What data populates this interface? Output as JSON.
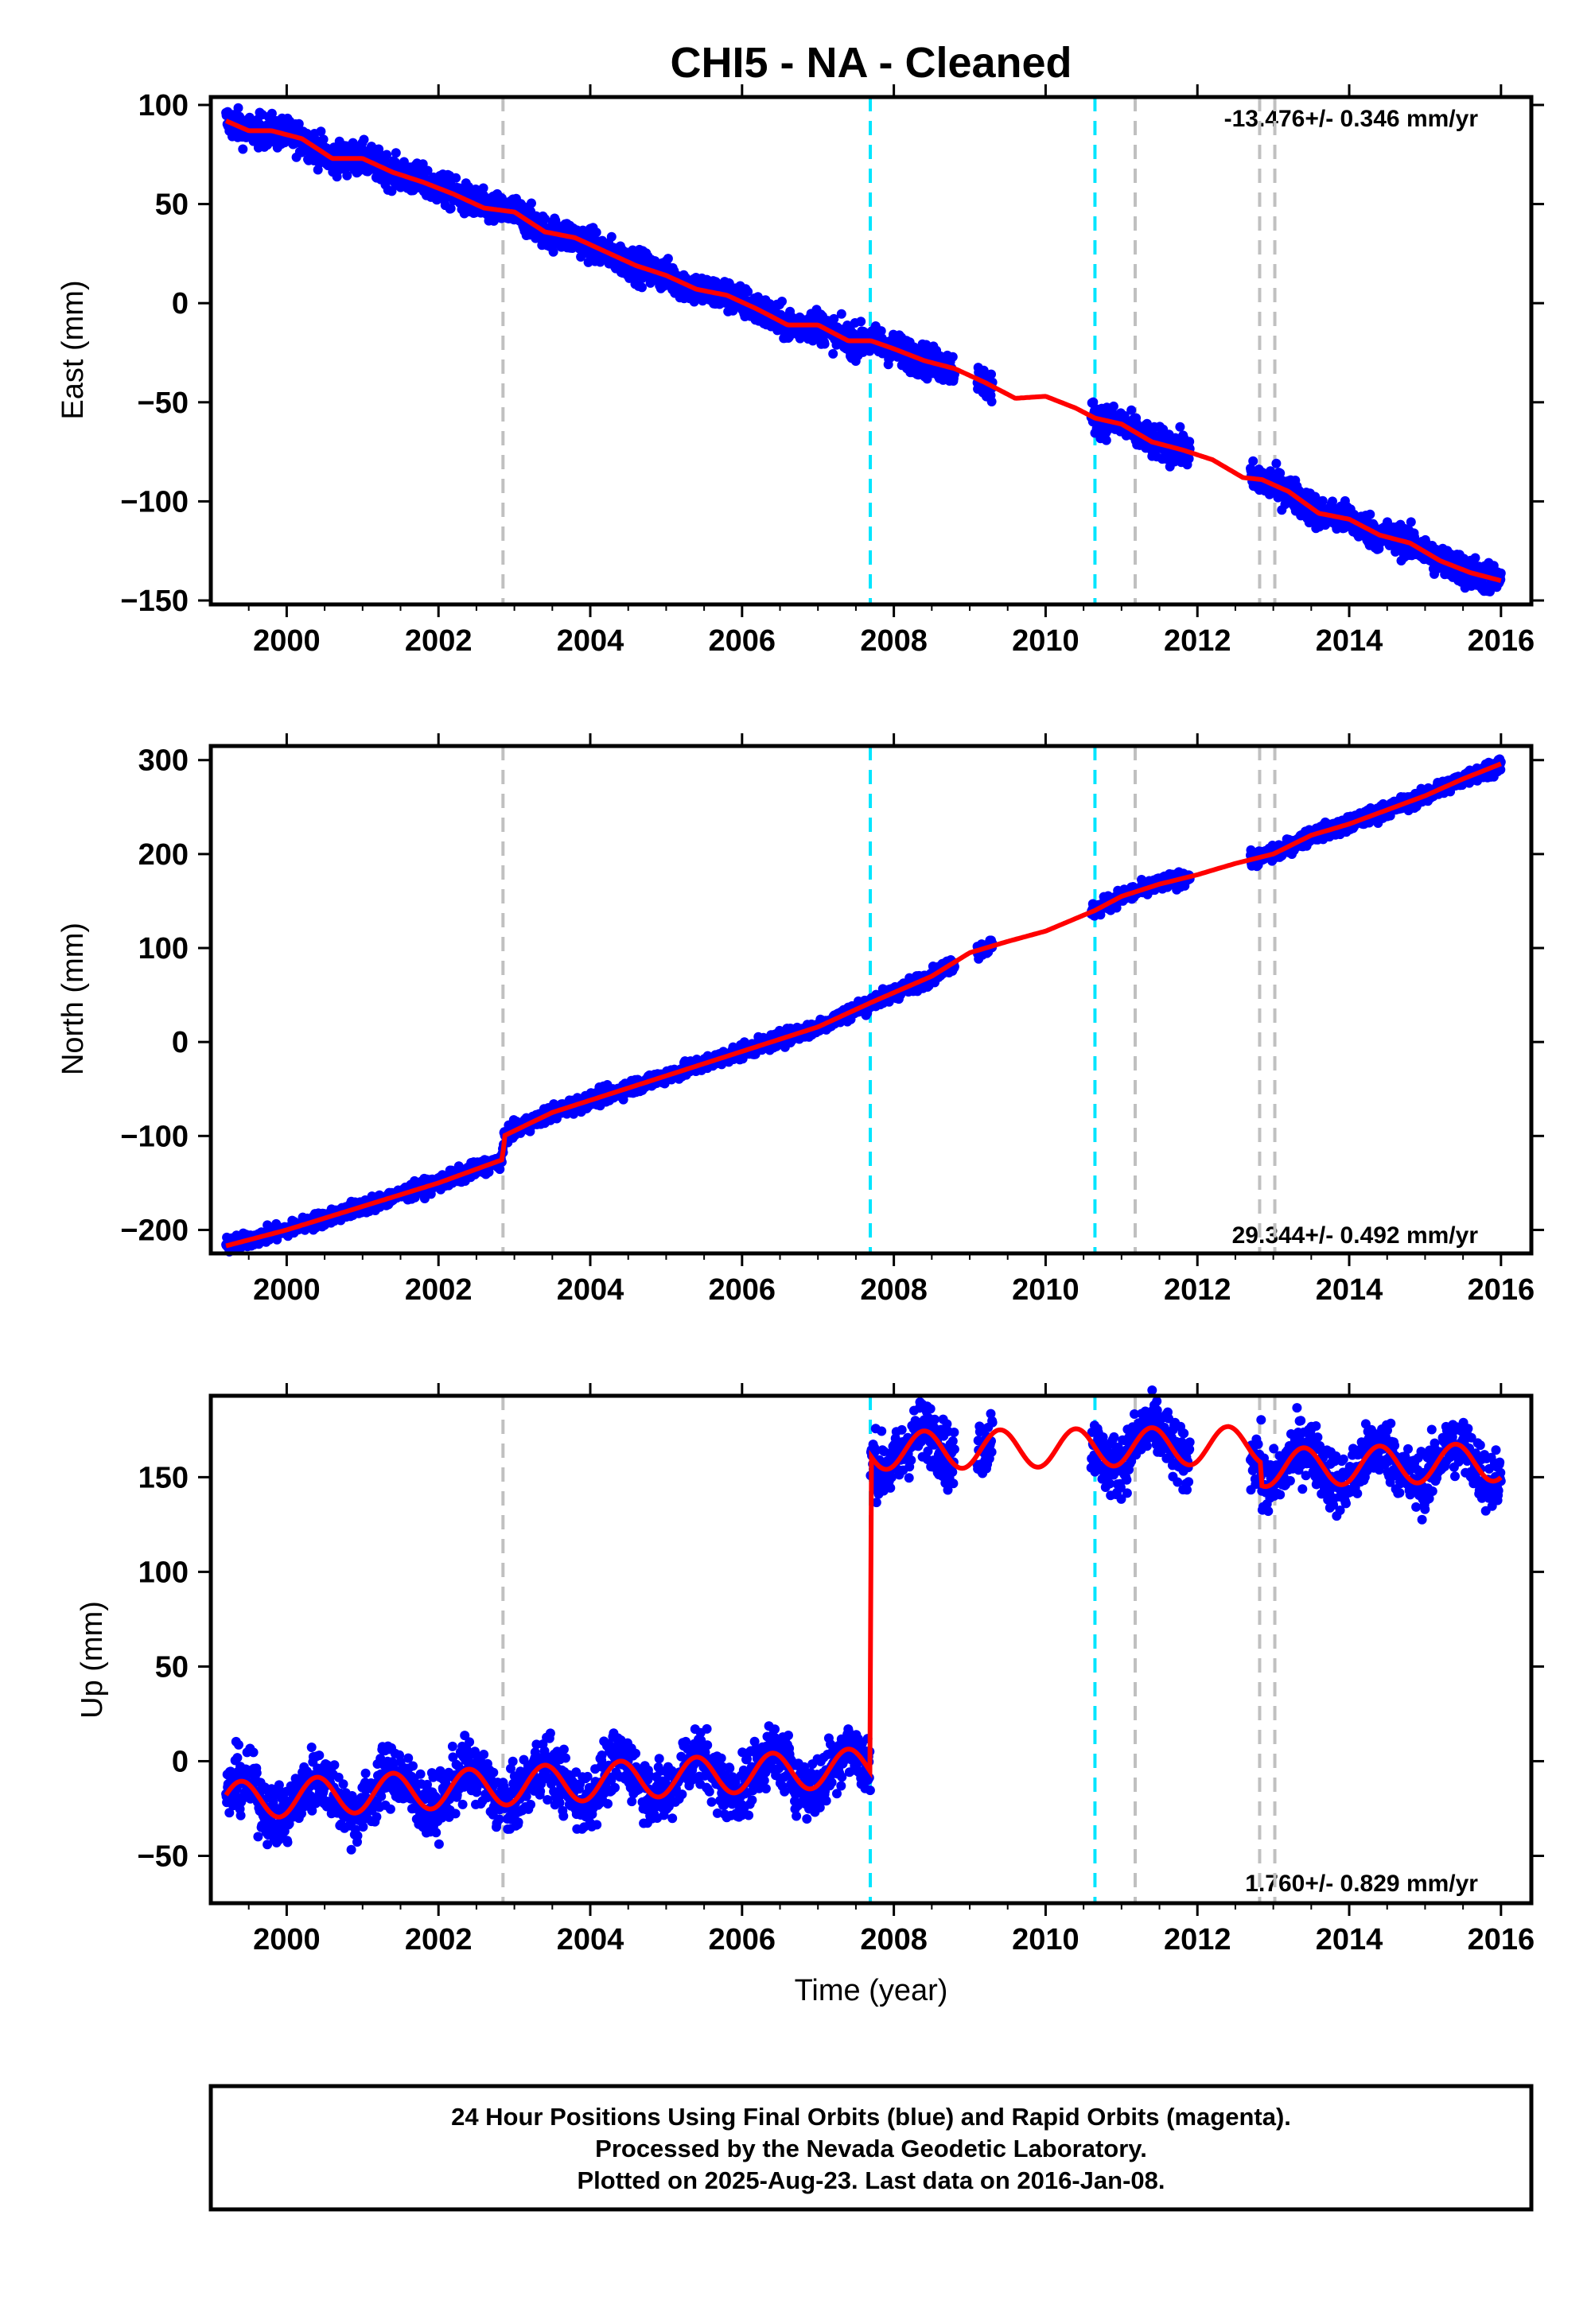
{
  "title": "CHI5  - NA - Cleaned",
  "xlabel": "Time (year)",
  "colors": {
    "observations": "#0000ff",
    "model": "#ff0000",
    "equipment_change": "#00e5ff",
    "other_event": "#c0c0c0",
    "frame": "#000000"
  },
  "footer": {
    "line1": "24 Hour Positions Using Final Orbits (blue) and Rapid Orbits (magenta).",
    "line2": "Processed by the Nevada Geodetic Laboratory.",
    "line3": "Plotted on 2025-Aug-23. Last data on 2016-Jan-08."
  },
  "chart_data": [
    {
      "type": "scatter",
      "panel": "east",
      "ylabel": "East (mm)",
      "rate_label": "-13.476+/- 0.346 mm/yr",
      "rate_position": "top-right",
      "xlim": [
        1999.0,
        2016.4
      ],
      "ylim": [
        -152,
        104
      ],
      "xticks": [
        2000,
        2002,
        2004,
        2006,
        2008,
        2010,
        2012,
        2014,
        2016
      ],
      "xtick_labels": [
        "2000",
        "2002",
        "2004",
        "2006",
        "2008",
        "2010",
        "2012",
        "2014",
        "2016"
      ],
      "yticks": [
        -150,
        -100,
        -50,
        0,
        50,
        100
      ],
      "ytick_labels": [
        "−150",
        "−100",
        "−50",
        "0",
        "50",
        "100"
      ],
      "model": {
        "name": "model",
        "x": [
          1999.2,
          1999.5,
          1999.8,
          2000.2,
          2000.6,
          2001.0,
          2001.4,
          2001.8,
          2002.2,
          2002.6,
          2003.0,
          2003.4,
          2003.8,
          2004.2,
          2004.6,
          2005.0,
          2005.4,
          2005.8,
          2006.2,
          2006.6,
          2007.0,
          2007.4,
          2007.7,
          2008.0,
          2008.4,
          2008.8,
          2009.2,
          2009.6,
          2010.0,
          2010.4,
          2010.65,
          2011.0,
          2011.4,
          2011.8,
          2012.2,
          2012.6,
          2012.85,
          2013.2,
          2013.6,
          2014.0,
          2014.4,
          2014.8,
          2015.2,
          2015.6,
          2016.0
        ],
        "y": [
          92,
          87,
          87,
          83,
          73,
          73,
          66,
          61,
          55,
          48,
          46,
          36,
          33,
          26,
          19,
          14,
          7,
          4,
          -3,
          -11,
          -11,
          -19,
          -19,
          -23,
          -29,
          -33,
          -40,
          -48,
          -47,
          -53,
          -58,
          -61,
          -70,
          -74,
          -79,
          -88,
          -89,
          -95,
          -106,
          -109,
          -117,
          -121,
          -130,
          -136,
          -140
        ]
      },
      "observations": {
        "name": "observations",
        "segments": [
          [
            1999.2,
            2008.8
          ],
          [
            2009.1,
            2009.3
          ],
          [
            2010.6,
            2011.9
          ],
          [
            2012.7,
            2016.0
          ]
        ],
        "scatter_mm": 4
      }
    },
    {
      "type": "scatter",
      "panel": "north",
      "ylabel": "North (mm)",
      "rate_label": "29.344+/- 0.492 mm/yr",
      "rate_position": "bottom-right",
      "xlim": [
        1999.0,
        2016.4
      ],
      "ylim": [
        -225,
        315
      ],
      "xticks": [
        2000,
        2002,
        2004,
        2006,
        2008,
        2010,
        2012,
        2014,
        2016
      ],
      "xtick_labels": [
        "2000",
        "2002",
        "2004",
        "2006",
        "2008",
        "2010",
        "2012",
        "2014",
        "2016"
      ],
      "yticks": [
        -200,
        -100,
        0,
        100,
        200,
        300
      ],
      "ytick_labels": [
        "−200",
        "−100",
        "0",
        "100",
        "200",
        "300"
      ],
      "model": {
        "name": "model",
        "x": [
          1999.2,
          2000.0,
          2001.0,
          2002.0,
          2002.85,
          2002.86,
          2003.5,
          2004.0,
          2005.0,
          2006.0,
          2007.0,
          2007.7,
          2008.5,
          2009.0,
          2009.5,
          2010.0,
          2010.65,
          2011.0,
          2011.5,
          2012.0,
          2012.5,
          2012.85,
          2013.0,
          2013.5,
          2014.0,
          2014.5,
          2015.0,
          2015.5,
          2016.0
        ],
        "y": [
          -217,
          -200,
          -175,
          -150,
          -125,
          -100,
          -75,
          -62,
          -36,
          -10,
          16,
          42,
          70,
          95,
          107,
          118,
          140,
          155,
          168,
          178,
          190,
          197,
          200,
          220,
          232,
          247,
          262,
          280,
          296
        ]
      },
      "observations": {
        "name": "observations",
        "segments": [
          [
            1999.2,
            2008.8
          ],
          [
            2009.1,
            2009.3
          ],
          [
            2010.6,
            2011.9
          ],
          [
            2012.7,
            2016.0
          ]
        ],
        "scatter_mm": 4
      }
    },
    {
      "type": "scatter",
      "panel": "up",
      "ylabel": "Up (mm)",
      "rate_label": "1.760+/- 0.829 mm/yr",
      "rate_position": "bottom-right",
      "xlim": [
        1999.0,
        2016.4
      ],
      "ylim": [
        -75,
        193
      ],
      "xticks": [
        2000,
        2002,
        2004,
        2006,
        2008,
        2010,
        2012,
        2014,
        2016
      ],
      "xtick_labels": [
        "2000",
        "2002",
        "2004",
        "2006",
        "2008",
        "2010",
        "2012",
        "2014",
        "2016"
      ],
      "yticks": [
        -50,
        0,
        50,
        100,
        150
      ],
      "ytick_labels": [
        "−50",
        "0",
        "50",
        "100",
        "150"
      ],
      "model": {
        "name": "model",
        "offset_epoch": 2007.69,
        "offset_mm": 165,
        "seasonal_amplitude_mm": 10,
        "segments": [
          {
            "x0": 1999.2,
            "x1": 2007.69,
            "y0": -21,
            "y1": -3
          },
          {
            "x0": 2007.69,
            "x1": 2012.85,
            "y0": 164,
            "y1": 167
          },
          {
            "x0": 2012.85,
            "x1": 2016.0,
            "y0": 155,
            "y1": 158
          }
        ]
      },
      "observations": {
        "name": "observations",
        "segments": [
          [
            1999.2,
            2008.8
          ],
          [
            2009.1,
            2009.3
          ],
          [
            2010.6,
            2011.9
          ],
          [
            2012.7,
            2016.0
          ]
        ],
        "scatter_mm": 8
      }
    }
  ],
  "events": {
    "equipment_change_epochs": [
      2007.69,
      2010.65
    ],
    "other_event_epochs": [
      2002.85,
      2011.18,
      2012.82,
      2013.02
    ]
  }
}
